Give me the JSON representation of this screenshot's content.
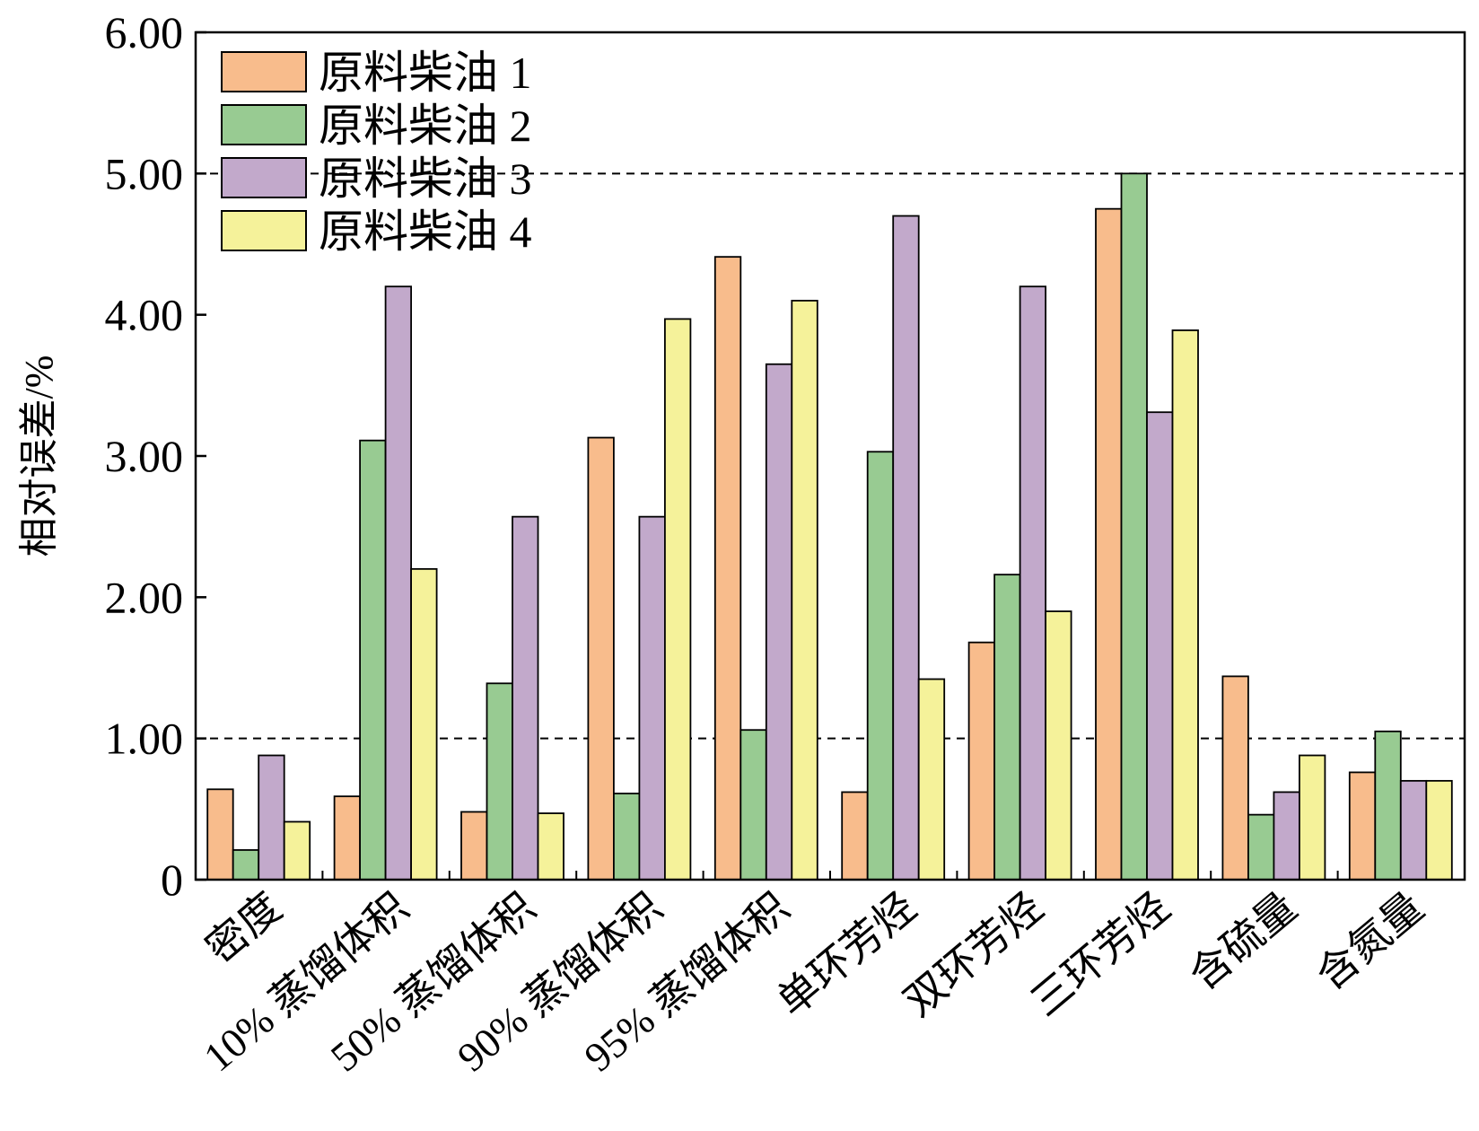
{
  "chart_data": {
    "type": "bar",
    "title": "",
    "xlabel": "",
    "ylabel": "相对误差/%",
    "ylim": [
      0,
      6
    ],
    "yticks": [
      "0",
      "1.00",
      "2.00",
      "3.00",
      "4.00",
      "5.00",
      "6.00"
    ],
    "reference_lines": [
      1,
      5
    ],
    "categories": [
      "密度",
      "10% 蒸馏体积",
      "50% 蒸馏体积",
      "90% 蒸馏体积",
      "95% 蒸馏体积",
      "单环芳烃",
      "双环芳烃",
      "三环芳烃",
      "含硫量",
      "含氮量"
    ],
    "legend_position": "top-left",
    "grid": false,
    "series": [
      {
        "name": "原料柴油 1",
        "color": "#F8BC8C",
        "values": [
          0.64,
          0.59,
          0.48,
          3.13,
          4.41,
          0.62,
          1.68,
          4.75,
          1.44,
          0.76
        ]
      },
      {
        "name": "原料柴油 2",
        "color": "#98CB92",
        "values": [
          0.21,
          3.11,
          1.39,
          0.61,
          1.06,
          3.03,
          2.16,
          5.0,
          0.46,
          1.05
        ]
      },
      {
        "name": "原料柴油 3",
        "color": "#C2A9CB",
        "values": [
          0.88,
          4.2,
          2.57,
          2.57,
          3.65,
          4.7,
          4.2,
          3.31,
          0.62,
          0.7
        ]
      },
      {
        "name": "原料柴油 4",
        "color": "#F5F29A",
        "values": [
          0.41,
          2.2,
          0.47,
          3.97,
          4.1,
          1.42,
          1.9,
          3.89,
          0.88,
          0.7
        ]
      }
    ]
  }
}
